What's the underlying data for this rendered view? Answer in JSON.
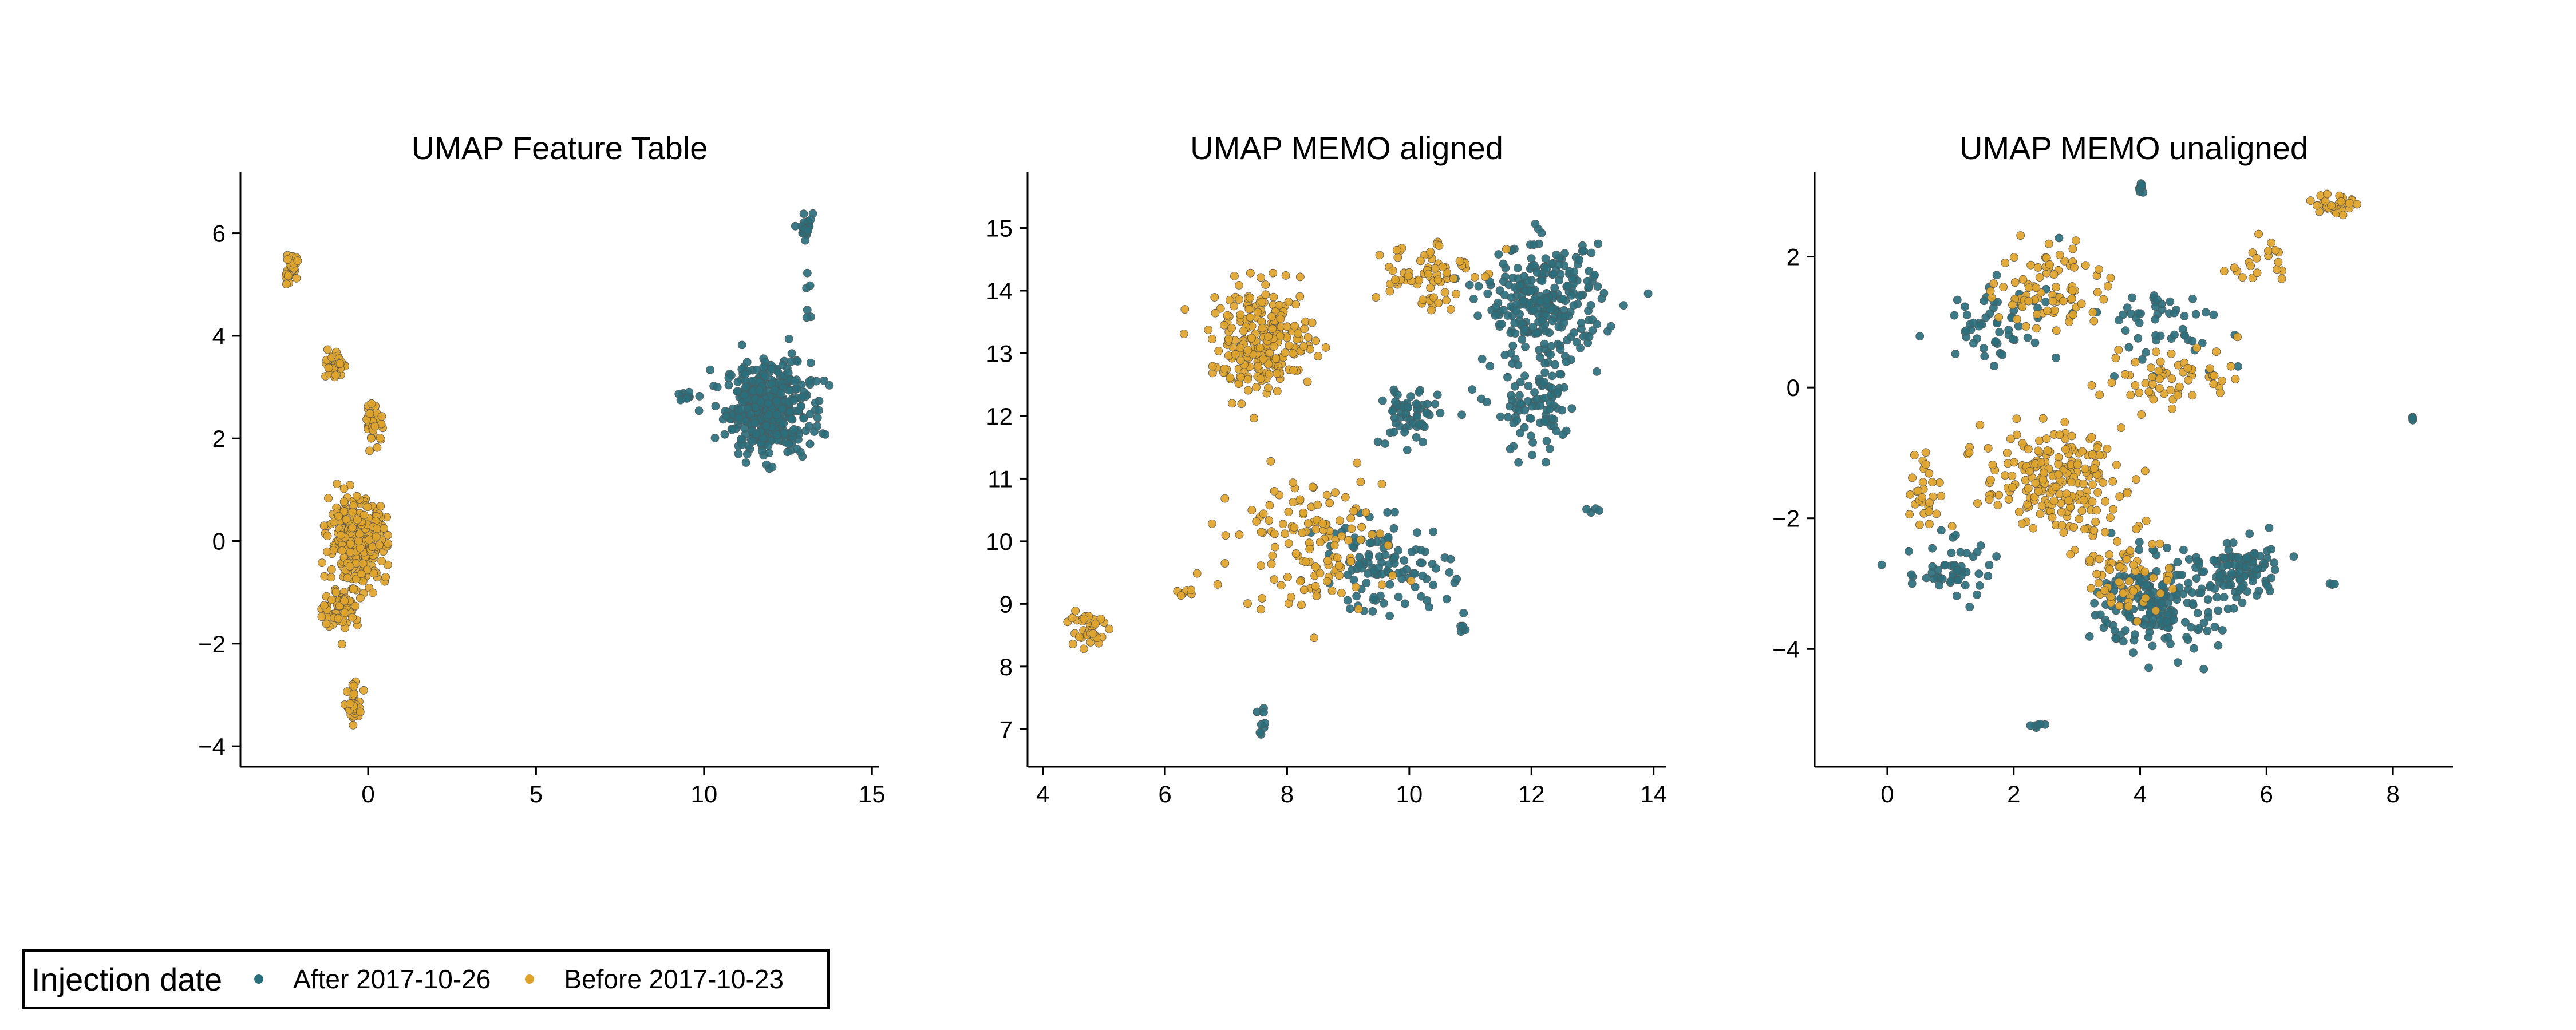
{
  "legend": {
    "title": "Injection date",
    "items": [
      {
        "label": "After 2017-10-26",
        "color": "#2a6f7c"
      },
      {
        "label": "Before 2017-10-23",
        "color": "#e0a42a"
      }
    ]
  },
  "chart_data": [
    {
      "type": "scatter",
      "title": "UMAP Feature Table",
      "xlim": [
        -3.8,
        15.2
      ],
      "ylim": [
        -4.4,
        7.2
      ],
      "xticks": [
        0,
        5,
        10,
        15
      ],
      "yticks": [
        -4,
        -2,
        0,
        2,
        4,
        6
      ],
      "xtick_labels": [
        "0",
        "5",
        "10",
        "15"
      ],
      "ytick_labels": [
        "−4",
        "−2",
        "0",
        "2",
        "4",
        "6"
      ],
      "grid": false,
      "series": [
        {
          "name": "After 2017-10-26",
          "color": "#2a6f7c",
          "clusters": [
            {
              "center": [
                11.9,
                2.6
              ],
              "spread": [
                1.05,
                0.75
              ],
              "n": 420
            },
            {
              "center": [
                13.0,
                6.1
              ],
              "spread": [
                0.22,
                0.28
              ],
              "n": 22
            },
            {
              "center": [
                13.1,
                4.6
              ],
              "spread": [
                0.1,
                0.35
              ],
              "n": 6
            },
            {
              "center": [
                9.4,
                2.8
              ],
              "spread": [
                0.3,
                0.12
              ],
              "n": 12
            }
          ]
        },
        {
          "name": "Before 2017-10-23",
          "color": "#e0a42a",
          "clusters": [
            {
              "center": [
                -2.3,
                5.3
              ],
              "spread": [
                0.18,
                0.2
              ],
              "n": 35
            },
            {
              "center": [
                -1.0,
                3.4
              ],
              "spread": [
                0.2,
                0.25
              ],
              "n": 40
            },
            {
              "center": [
                0.2,
                2.3
              ],
              "spread": [
                0.22,
                0.3
              ],
              "n": 35
            },
            {
              "center": [
                -0.3,
                0.0
              ],
              "spread": [
                0.7,
                0.65
              ],
              "n": 330
            },
            {
              "center": [
                -0.8,
                -1.3
              ],
              "spread": [
                0.45,
                0.35
              ],
              "n": 70
            },
            {
              "center": [
                -0.4,
                -3.2
              ],
              "spread": [
                0.18,
                0.28
              ],
              "n": 45
            }
          ]
        }
      ]
    },
    {
      "type": "scatter",
      "title": "UMAP MEMO aligned",
      "xlim": [
        3.75,
        14.2
      ],
      "ylim": [
        6.4,
        15.9
      ],
      "xticks": [
        4,
        6,
        8,
        10,
        12,
        14
      ],
      "yticks": [
        7,
        8,
        9,
        10,
        11,
        12,
        13,
        14,
        15
      ],
      "xtick_labels": [
        "4",
        "6",
        "8",
        "10",
        "12",
        "14"
      ],
      "ytick_labels": [
        "7",
        "8",
        "9",
        "10",
        "11",
        "12",
        "13",
        "14",
        "15"
      ],
      "grid": false,
      "series": [
        {
          "name": "After 2017-10-26",
          "color": "#2a6f7c",
          "clusters": [
            {
              "center": [
                12.2,
                13.8
              ],
              "spread": [
                0.8,
                0.75
              ],
              "n": 260
            },
            {
              "center": [
                12.1,
                12.1
              ],
              "spread": [
                0.6,
                0.7
              ],
              "n": 90
            },
            {
              "center": [
                10.0,
                12.0
              ],
              "spread": [
                0.4,
                0.4
              ],
              "n": 60
            },
            {
              "center": [
                9.6,
                9.6
              ],
              "spread": [
                0.9,
                0.6
              ],
              "n": 110
            },
            {
              "center": [
                7.6,
                7.2
              ],
              "spread": [
                0.08,
                0.25
              ],
              "n": 8
            },
            {
              "center": [
                13.0,
                10.5
              ],
              "spread": [
                0.08,
                0.06
              ],
              "n": 4
            },
            {
              "center": [
                10.9,
                8.6
              ],
              "spread": [
                0.08,
                0.08
              ],
              "n": 5
            }
          ]
        },
        {
          "name": "Before 2017-10-23",
          "color": "#e0a42a",
          "clusters": [
            {
              "center": [
                7.6,
                13.2
              ],
              "spread": [
                0.7,
                0.7
              ],
              "n": 240
            },
            {
              "center": [
                8.4,
                10.0
              ],
              "spread": [
                1.0,
                0.9
              ],
              "n": 130
            },
            {
              "center": [
                10.2,
                14.3
              ],
              "spread": [
                0.7,
                0.5
              ],
              "n": 70
            },
            {
              "center": [
                4.7,
                8.6
              ],
              "spread": [
                0.25,
                0.3
              ],
              "n": 40
            },
            {
              "center": [
                6.3,
                9.2
              ],
              "spread": [
                0.2,
                0.1
              ],
              "n": 6
            }
          ]
        }
      ]
    },
    {
      "type": "scatter",
      "title": "UMAP MEMO unaligned",
      "xlim": [
        -1.15,
        8.95
      ],
      "ylim": [
        -5.8,
        3.3
      ],
      "xticks": [
        0,
        2,
        4,
        6,
        8
      ],
      "yticks": [
        -4,
        -2,
        0,
        2
      ],
      "xtick_labels": [
        "0",
        "2",
        "4",
        "6",
        "8"
      ],
      "ytick_labels": [
        "−4",
        "−2",
        "0",
        "2"
      ],
      "grid": false,
      "series": [
        {
          "name": "After 2017-10-26",
          "color": "#2a6f7c",
          "clusters": [
            {
              "center": [
                4.3,
                -3.3
              ],
              "spread": [
                0.8,
                0.6
              ],
              "n": 200
            },
            {
              "center": [
                5.6,
                -2.8
              ],
              "spread": [
                0.5,
                0.4
              ],
              "n": 90
            },
            {
              "center": [
                1.0,
                -2.8
              ],
              "spread": [
                0.6,
                0.4
              ],
              "n": 50
            },
            {
              "center": [
                1.8,
                1.0
              ],
              "spread": [
                0.8,
                0.5
              ],
              "n": 60
            },
            {
              "center": [
                4.3,
                1.0
              ],
              "spread": [
                0.9,
                0.5
              ],
              "n": 50
            },
            {
              "center": [
                4.0,
                3.0
              ],
              "spread": [
                0.06,
                0.15
              ],
              "n": 8
            },
            {
              "center": [
                2.4,
                -5.15
              ],
              "spread": [
                0.08,
                0.08
              ],
              "n": 6
            },
            {
              "center": [
                8.3,
                -0.5
              ],
              "spread": [
                0.03,
                0.04
              ],
              "n": 4
            },
            {
              "center": [
                7.0,
                -3.0
              ],
              "spread": [
                0.05,
                0.04
              ],
              "n": 3
            }
          ]
        },
        {
          "name": "Before 2017-10-23",
          "color": "#e0a42a",
          "clusters": [
            {
              "center": [
                2.6,
                -1.4
              ],
              "spread": [
                0.9,
                0.6
              ],
              "n": 200
            },
            {
              "center": [
                2.6,
                1.5
              ],
              "spread": [
                0.7,
                0.6
              ],
              "n": 80
            },
            {
              "center": [
                4.5,
                0.2
              ],
              "spread": [
                0.9,
                0.4
              ],
              "n": 60
            },
            {
              "center": [
                7.1,
                2.8
              ],
              "spread": [
                0.3,
                0.15
              ],
              "n": 30
            },
            {
              "center": [
                5.9,
                1.9
              ],
              "spread": [
                0.35,
                0.3
              ],
              "n": 20
            },
            {
              "center": [
                3.8,
                -2.8
              ],
              "spread": [
                0.6,
                0.6
              ],
              "n": 70
            },
            {
              "center": [
                0.6,
                -1.6
              ],
              "spread": [
                0.3,
                0.5
              ],
              "n": 30
            }
          ]
        }
      ]
    }
  ]
}
